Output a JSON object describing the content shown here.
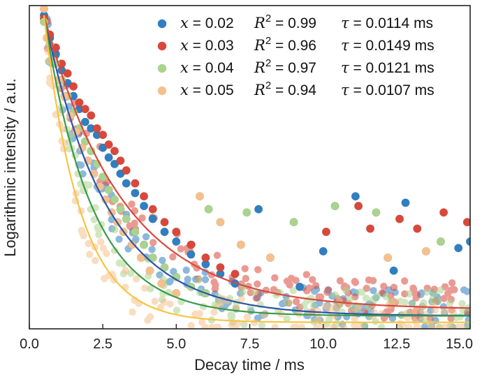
{
  "chart_data": {
    "type": "scatter",
    "title": "",
    "xlabel": "Decay time / ms",
    "ylabel": "Logarithmic intensity / a.u.",
    "xlim": [
      0,
      15
    ],
    "ylim": [
      0,
      1
    ],
    "y_ticks_shown": false,
    "x_ticks": [
      0.0,
      2.5,
      5.0,
      7.5,
      10.0,
      12.5,
      15.0
    ],
    "x_tick_labels": [
      "0.0",
      "2.5",
      "5.0",
      "7.5",
      "10.0",
      "12.5",
      "15.0"
    ],
    "legend_placement": "top-right",
    "series": [
      {
        "name": "x = 0.02",
        "x_value": "0.02",
        "r2": "0.99",
        "tau": "0.0114",
        "marker_color": "#2f7fc1",
        "fit_color": "#2a55a8",
        "fit_floor": 0.04,
        "fit_rate": 0.47,
        "noise_baseline": 0.06,
        "points": [
          [
            0.5,
            0.97
          ],
          [
            0.7,
            0.9
          ],
          [
            0.9,
            0.85
          ],
          [
            1.1,
            0.8
          ],
          [
            1.3,
            0.76
          ],
          [
            1.5,
            0.72
          ],
          [
            1.7,
            0.68
          ],
          [
            1.9,
            0.64
          ],
          [
            2.1,
            0.62
          ],
          [
            2.3,
            0.6
          ],
          [
            2.5,
            0.56
          ],
          [
            2.7,
            0.53
          ],
          [
            2.9,
            0.51
          ],
          [
            3.1,
            0.48
          ],
          [
            3.3,
            0.45
          ],
          [
            3.6,
            0.42
          ],
          [
            3.9,
            0.38
          ],
          [
            4.2,
            0.34
          ],
          [
            4.6,
            0.3
          ],
          [
            5.0,
            0.27
          ],
          [
            5.5,
            0.23
          ],
          [
            6.0,
            0.2
          ],
          [
            6.5,
            0.17
          ],
          [
            7.0,
            0.14
          ],
          [
            7.8,
            0.37
          ],
          [
            9.2,
            0.13
          ],
          [
            10.0,
            0.24
          ],
          [
            11.1,
            0.41
          ],
          [
            12.4,
            0.18
          ],
          [
            12.8,
            0.39
          ],
          [
            14.6,
            0.25
          ],
          [
            15.0,
            0.27
          ]
        ]
      },
      {
        "name": "x = 0.03",
        "x_value": "0.03",
        "r2": "0.96",
        "tau": "0.0149",
        "marker_color": "#d9483b",
        "fit_color": "#d9483b",
        "fit_floor": 0.06,
        "fit_rate": 0.37,
        "noise_baseline": 0.08,
        "points": [
          [
            0.5,
            0.96
          ],
          [
            0.7,
            0.91
          ],
          [
            0.9,
            0.87
          ],
          [
            1.1,
            0.82
          ],
          [
            1.3,
            0.79
          ],
          [
            1.5,
            0.75
          ],
          [
            1.7,
            0.7
          ],
          [
            1.9,
            0.68
          ],
          [
            2.1,
            0.66
          ],
          [
            2.3,
            0.62
          ],
          [
            2.5,
            0.6
          ],
          [
            2.7,
            0.57
          ],
          [
            2.9,
            0.55
          ],
          [
            3.1,
            0.52
          ],
          [
            3.3,
            0.49
          ],
          [
            3.6,
            0.45
          ],
          [
            3.9,
            0.41
          ],
          [
            4.2,
            0.37
          ],
          [
            4.6,
            0.33
          ],
          [
            5.0,
            0.3
          ],
          [
            5.5,
            0.26
          ],
          [
            6.0,
            0.22
          ],
          [
            6.5,
            0.19
          ],
          [
            7.0,
            0.17
          ],
          [
            10.1,
            0.3
          ],
          [
            11.2,
            0.38
          ],
          [
            11.6,
            0.31
          ],
          [
            12.6,
            0.34
          ],
          [
            13.2,
            0.31
          ],
          [
            14.1,
            0.36
          ],
          [
            14.9,
            0.33
          ]
        ]
      },
      {
        "name": "x = 0.04",
        "x_value": "0.04",
        "r2": "0.97",
        "tau": "0.0121",
        "marker_color": "#aad48e",
        "fit_color": "#3a9a48",
        "fit_floor": 0.04,
        "fit_rate": 0.62,
        "noise_baseline": 0.06,
        "points": [
          [
            0.5,
            0.95
          ],
          [
            0.7,
            0.88
          ],
          [
            0.9,
            0.82
          ],
          [
            1.1,
            0.77
          ],
          [
            1.3,
            0.72
          ],
          [
            1.5,
            0.67
          ],
          [
            1.7,
            0.62
          ],
          [
            1.9,
            0.58
          ],
          [
            2.1,
            0.55
          ],
          [
            2.3,
            0.51
          ],
          [
            2.5,
            0.47
          ],
          [
            2.7,
            0.43
          ],
          [
            2.9,
            0.4
          ],
          [
            3.1,
            0.37
          ],
          [
            3.3,
            0.34
          ],
          [
            3.6,
            0.3
          ],
          [
            3.9,
            0.26
          ],
          [
            4.2,
            0.22
          ],
          [
            4.6,
            0.19
          ],
          [
            5.0,
            0.16
          ],
          [
            5.5,
            0.13
          ],
          [
            6.0,
            0.11
          ],
          [
            6.1,
            0.37
          ],
          [
            7.4,
            0.36
          ],
          [
            9.0,
            0.33
          ],
          [
            10.4,
            0.38
          ],
          [
            11.8,
            0.36
          ],
          [
            14.0,
            0.27
          ]
        ]
      },
      {
        "name": "x = 0.05",
        "x_value": "0.05",
        "r2": "0.94",
        "tau": "0.0107",
        "marker_color": "#f6c08c",
        "fit_color": "#f5c542",
        "fit_floor": 0.02,
        "fit_rate": 0.82,
        "noise_baseline": 0.03,
        "points": [
          [
            0.5,
            0.99
          ],
          [
            0.6,
            0.9
          ],
          [
            0.8,
            0.83
          ],
          [
            1.0,
            0.77
          ],
          [
            1.2,
            0.72
          ],
          [
            1.4,
            0.66
          ],
          [
            1.6,
            0.61
          ],
          [
            1.8,
            0.56
          ],
          [
            2.0,
            0.52
          ],
          [
            2.2,
            0.48
          ],
          [
            2.4,
            0.44
          ],
          [
            2.6,
            0.4
          ],
          [
            2.8,
            0.36
          ],
          [
            3.0,
            0.33
          ],
          [
            3.2,
            0.3
          ],
          [
            3.5,
            0.26
          ],
          [
            3.8,
            0.22
          ],
          [
            4.1,
            0.18
          ],
          [
            4.5,
            0.14
          ],
          [
            5.0,
            0.11
          ],
          [
            5.8,
            0.41
          ],
          [
            6.5,
            0.33
          ],
          [
            7.2,
            0.26
          ],
          [
            8.2,
            0.22
          ],
          [
            12.2,
            0.22
          ],
          [
            13.5,
            0.24
          ]
        ]
      }
    ]
  }
}
